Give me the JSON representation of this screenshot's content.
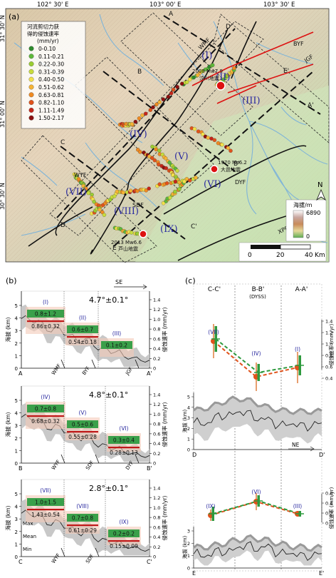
{
  "map": {
    "panel_label": "(a)",
    "lon_ticks": [
      "102° 30' E",
      "103° 00' E",
      "103° 30' E"
    ],
    "lat_ticks": [
      "31° 30' N",
      "31° 00' N",
      "30° 30' N"
    ],
    "legend_title": [
      "河流剪切力获",
      "得的侵蚀速率",
      "(mm/yr)"
    ],
    "legend_items": [
      {
        "label": "0-0.10",
        "color": "#2e8b2e"
      },
      {
        "label": "0.11-0.21",
        "color": "#5db83a"
      },
      {
        "label": "0.22-0.30",
        "color": "#9acd32"
      },
      {
        "label": "0.31-0.39",
        "color": "#c8dc3c"
      },
      {
        "label": "0.40-0.50",
        "color": "#f2e14b"
      },
      {
        "label": "0.51-0.62",
        "color": "#f5b335"
      },
      {
        "label": "0.63-0.81",
        "color": "#ef8a22"
      },
      {
        "label": "0.82-1.10",
        "color": "#e0521b"
      },
      {
        "label": "1.11-1.49",
        "color": "#c4261a"
      },
      {
        "label": "1.50-2.17",
        "color": "#8c1010"
      }
    ],
    "faults": [
      "WMF",
      "BYF",
      "JGF",
      "WYF",
      "SDF",
      "DYF",
      "XPF"
    ],
    "zones": [
      "(I)",
      "(II)",
      "(III)",
      "(IV)",
      "(V)",
      "(VI)",
      "(VII)",
      "(VIII)",
      "(IX)"
    ],
    "profile_ends": [
      "A",
      "A'",
      "B",
      "B'",
      "C",
      "C'",
      "D",
      "D'",
      "E",
      "E'"
    ],
    "quakes": [
      {
        "line1": "2008 Mw7.9",
        "line2": "汶川地震"
      },
      {
        "line1": "1970 Ms6.2",
        "line2": "大邑地震"
      },
      {
        "line1": "2013 Mw6.6",
        "line2": "芦山地震"
      }
    ],
    "elevation_legend": {
      "title": "海拔/m",
      "max": "6890",
      "min": "0"
    },
    "north_label": "N",
    "scale_labels": [
      "0",
      "20",
      "40",
      "Km"
    ]
  },
  "panel_b": {
    "panel_label": "(b)",
    "y_left_label": "海拔 (km)",
    "y_right_label": "侵蚀速率 (mm/yr)",
    "se_label": "SE",
    "profiles": [
      {
        "angle": "4.7°±0.1°",
        "start": "A",
        "end": "A'",
        "zones": [
          "(I)",
          "(II)",
          "(III)"
        ],
        "green_vals": [
          "0.8±1.2",
          "0.6±0.7",
          "0.1±0.2"
        ],
        "red_vals": [
          "0.86±0.32",
          "0.54±0.18",
          ""
        ],
        "faults": [
          "WMF",
          "BYF",
          "JGF"
        ]
      },
      {
        "angle": "4.8°±0.1°",
        "start": "B",
        "end": "B'",
        "zones": [
          "(IV)",
          "(V)",
          "(VI)"
        ],
        "green_vals": [
          "0.7±0.8",
          "0.5±0.6",
          "0.3±0.4"
        ],
        "red_vals": [
          "0.68±0.32",
          "0.55±0.28",
          "0.28±0.13"
        ],
        "faults": [
          "WYF",
          "SDF",
          "DYF"
        ]
      },
      {
        "angle": "2.8°±0.1°",
        "start": "C",
        "end": "C'",
        "zones": [
          "(VII)",
          "(VIII)",
          "(IX)"
        ],
        "green_vals": [
          "1.0±1.5",
          "0.7±0.8",
          "0.2±0.2"
        ],
        "red_vals": [
          "1.43±0.54",
          "0.61±0.29",
          "0.15±0.09"
        ],
        "faults": [
          "WYF",
          "SDF"
        ],
        "stat_labels": [
          "Max",
          "Mean",
          "Min"
        ]
      }
    ],
    "y_ticks_left": [
      "0",
      "1",
      "2",
      "3",
      "4",
      "5"
    ],
    "y_ticks_right": [
      "0",
      "0.2",
      "0.4",
      "0.6",
      "0.8",
      "1.0",
      "1.2",
      "1.4"
    ]
  },
  "panel_c": {
    "panel_label": "(c)",
    "col_labels": [
      "C-C'",
      "B-B'",
      "A-A'"
    ],
    "dyss": "(DYSS)",
    "top_zones": [
      "(VII)",
      "(IV)",
      "(I)"
    ],
    "bottom_zones": [
      "(IX)",
      "(VI)",
      "(III)"
    ],
    "y_rate_label": "侵蚀速率 (mm/yr)",
    "y_elev_label": "海拔 (km)",
    "ne_label": "NE",
    "d_ends": [
      "D",
      "D'"
    ],
    "e_ends": [
      "E",
      "E'"
    ],
    "rate_ticks_top": [
      "0.4",
      "0.6",
      "0.8",
      "1.0",
      "1.2",
      "1.4"
    ],
    "rate_ticks_bottom": [
      "0",
      "0.2",
      "0.4",
      "0.6"
    ],
    "elev_ticks": [
      "0",
      "1",
      "2",
      "3",
      "4",
      "5"
    ],
    "elev_ticks_bottom": [
      "0",
      "1",
      "2",
      "3"
    ]
  }
}
